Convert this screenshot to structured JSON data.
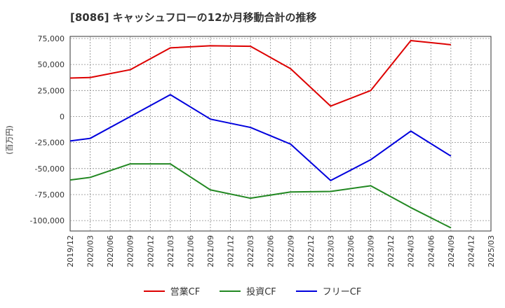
{
  "chart_data": {
    "type": "line",
    "title": "[8086]  キャッシュフローの12か月移動合計の推移",
    "ylabel": "(百万円)",
    "xlabel": "",
    "categories": [
      "2019/12",
      "2020/03",
      "2020/06",
      "2020/09",
      "2020/12",
      "2021/03",
      "2021/06",
      "2021/09",
      "2021/12",
      "2022/03",
      "2022/06",
      "2022/09",
      "2022/12",
      "2023/03",
      "2023/06",
      "2023/09",
      "2023/12",
      "2024/03",
      "2024/06",
      "2024/09",
      "2024/12",
      "2025/03"
    ],
    "ylim": [
      -110000,
      77000
    ],
    "yticks": [
      75000,
      50000,
      25000,
      0,
      -25000,
      -50000,
      -75000,
      -100000
    ],
    "ytick_labels": [
      "75,000",
      "50,000",
      "25,000",
      "0",
      "-25,000",
      "-50,000",
      "-75,000",
      "-100,000"
    ],
    "grid": true,
    "legend_position": "bottom",
    "series": [
      {
        "name": "営業CF",
        "color": "#dd0000",
        "values": [
          37000,
          37500,
          null,
          45000,
          null,
          66000,
          null,
          68000,
          null,
          67500,
          null,
          46000,
          null,
          10000,
          null,
          25000,
          null,
          73000,
          null,
          69000,
          null,
          null
        ]
      },
      {
        "name": "投資CF",
        "color": "#228822",
        "values": [
          -61000,
          -58500,
          null,
          -45500,
          null,
          -45500,
          null,
          -70500,
          null,
          -78500,
          null,
          -72500,
          null,
          -72000,
          null,
          -66500,
          null,
          -87500,
          null,
          -107000,
          null,
          null
        ]
      },
      {
        "name": "フリーCF",
        "color": "#0000dd",
        "values": [
          -23500,
          -21000,
          null,
          0,
          null,
          21000,
          null,
          -2500,
          null,
          -10500,
          null,
          -26500,
          null,
          -61500,
          null,
          -41500,
          null,
          -14000,
          null,
          -38000,
          null,
          null
        ]
      }
    ]
  }
}
